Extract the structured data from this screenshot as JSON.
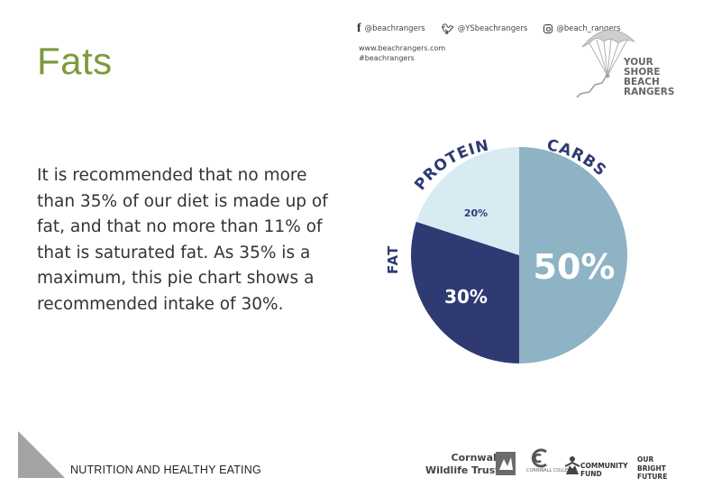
{
  "slide": {
    "title": "Fats",
    "body": "It is recommended that no more than 35% of our diet is made up of fat, and that no more than 11% of that is saturated fat. As 35% is a maximum, this pie chart shows a recommended intake of 30%.",
    "footer": "NUTRITION AND HEALTHY EATING"
  },
  "header": {
    "social": [
      {
        "icon": "facebook-icon",
        "handle": "@beachrangers"
      },
      {
        "icon": "twitter-icon",
        "handle": "@YSbeachrangers"
      },
      {
        "icon": "instagram-icon",
        "handle": "@beach_rangers"
      }
    ],
    "website": "www.beachrangers.com",
    "hashtag": "#beachrangers",
    "logo_lines": [
      "YOUR",
      "SHORE",
      "BEACH",
      "RANGERS"
    ]
  },
  "partners": {
    "cornwall_wildlife_trust": [
      "Cornwall",
      "Wildlife Trust"
    ],
    "cornwall_college": "CORNWALL COLLEGE",
    "community_fund": [
      "COMMUNITY",
      "FUND"
    ],
    "our_bright_future": [
      "OUR",
      "BRIGHT",
      "FUTURE"
    ]
  },
  "chart_data": {
    "type": "pie",
    "slices": [
      {
        "label": "CARBS",
        "value": 50,
        "value_label": "50%",
        "color": "#8db3c5"
      },
      {
        "label": "FAT",
        "value": 30,
        "value_label": "30%",
        "color": "#2f3a73"
      },
      {
        "label": "PROTEIN",
        "value": 20,
        "value_label": "20%",
        "color": "#d8ebf3"
      }
    ],
    "label_color": "#2f3a73"
  },
  "colors": {
    "title": "#7d9a3c",
    "corner_triangle": "#a3a3a3"
  }
}
